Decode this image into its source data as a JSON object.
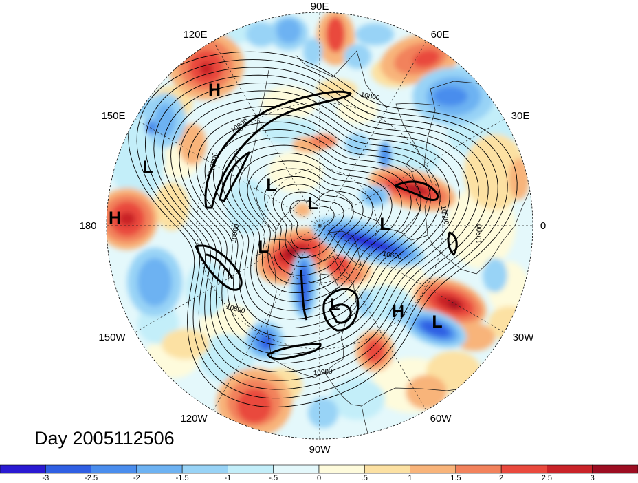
{
  "map": {
    "title": "Day 2005112506",
    "longitude_labels": [
      "90E",
      "60E",
      "30E",
      "0",
      "30W",
      "60W",
      "90W",
      "120W",
      "150W",
      "180",
      "150E",
      "120E"
    ],
    "pressure_centers": [
      "H",
      "L",
      "H",
      "L",
      "L",
      "L",
      "L",
      "L",
      "H",
      "L"
    ],
    "contour_labels": [
      "10800",
      "10900",
      "10800",
      "10000",
      "10800",
      "10600",
      "10500",
      "10900",
      "10900"
    ]
  },
  "colorbar": {
    "tick_labels": [
      "-3",
      "-2.5",
      "-2",
      "-1.5",
      "-1",
      "-.5",
      "0",
      ".5",
      "1",
      "1.5",
      "2",
      "2.5",
      "3"
    ],
    "colors": [
      "#2a1ad2",
      "#2f5fe3",
      "#4a8ded",
      "#6db2f2",
      "#98d3f6",
      "#c3eef9",
      "#e4f8fb",
      "#fefbdc",
      "#fce1a3",
      "#f8b47a",
      "#f2825c",
      "#e9493d",
      "#c92328",
      "#9c0d21"
    ]
  }
}
